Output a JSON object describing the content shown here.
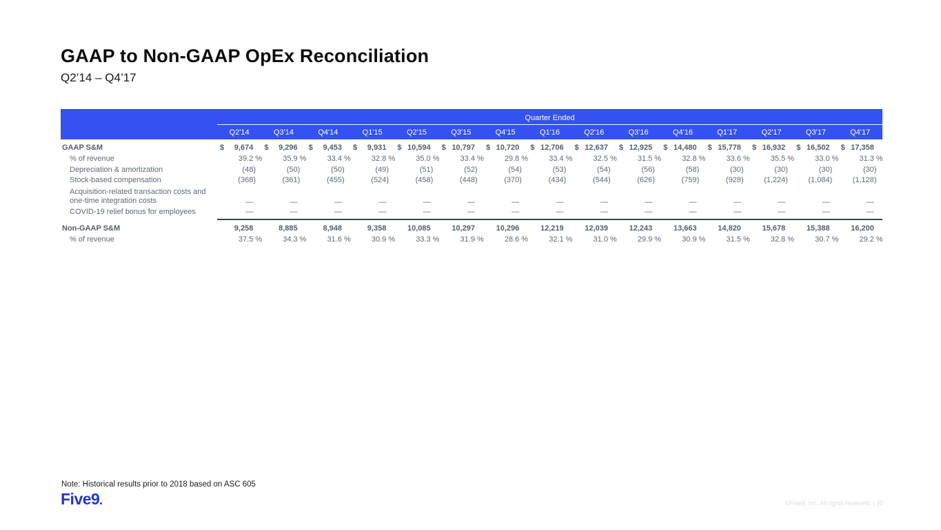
{
  "slide": {
    "title": "GAAP to Non-GAAP OpEx Reconciliation",
    "subtitle": "Q2’14 – Q4’17",
    "note": "Note: Historical results prior to 2018 based on ASC 605",
    "logo_text": "Five9",
    "footer": "©Five9, Inc. All rights reserved. | 30"
  },
  "colors": {
    "header_blue": "#3352F1",
    "logo_blue": "#2535CC",
    "text_gray": "#5D6879",
    "text_gray_dark": "#525D6F",
    "rule_dark": "#3A4150",
    "title_black": "#0B0B0C",
    "footer_gray": "#DCDCDC"
  },
  "table": {
    "group_header": "Quarter Ended",
    "columns": [
      "Q2'14",
      "Q3'14",
      "Q4'14",
      "Q1'15",
      "Q2'15",
      "Q3'15",
      "Q4'15",
      "Q1'16",
      "Q2'16",
      "Q3'16",
      "Q4'16",
      "Q1'17",
      "Q2'17",
      "Q3'17",
      "Q4'17"
    ],
    "rows": [
      {
        "label": "GAAP S&M",
        "style": "total",
        "dollar": true,
        "values": [
          "9,674",
          "9,296",
          "9,453",
          "9,931",
          "10,594",
          "10,797",
          "10,720",
          "12,706",
          "12,637",
          "12,925",
          "14,480",
          "15,778",
          "16,932",
          "16,502",
          "17,358"
        ]
      },
      {
        "label": "% of revenue",
        "style": "sub",
        "values": [
          "39.2 %",
          "35.9 %",
          "33.4 %",
          "32.8 %",
          "35.0 %",
          "33.4 %",
          "29.8 %",
          "33.4 %",
          "32.5 %",
          "31.5 %",
          "32.8 %",
          "33.6 %",
          "35.5 %",
          "33.0 %",
          "31.3 %"
        ]
      },
      {
        "label": "Depreciation & amortization",
        "style": "sub",
        "values": [
          "(48)",
          "(50)",
          "(50)",
          "(49)",
          "(51)",
          "(52)",
          "(54)",
          "(53)",
          "(54)",
          "(56)",
          "(58)",
          "(30)",
          "(30)",
          "(30)",
          "(30)"
        ]
      },
      {
        "label": "Stock-based compensation",
        "style": "sub",
        "values": [
          "(368)",
          "(361)",
          "(455)",
          "(524)",
          "(458)",
          "(448)",
          "(370)",
          "(434)",
          "(544)",
          "(626)",
          "(759)",
          "(928)",
          "(1,224)",
          "(1,084)",
          "(1,128)"
        ]
      },
      {
        "label": "Acquisition-related transaction costs and\none-time integration costs",
        "style": "sub",
        "two_line": true,
        "values": [
          "—",
          "—",
          "—",
          "—",
          "—",
          "—",
          "—",
          "—",
          "—",
          "—",
          "—",
          "—",
          "—",
          "—",
          "—"
        ]
      },
      {
        "label": "COVID-19 relief bonus for employees",
        "style": "sub",
        "rule_below": true,
        "values": [
          "—",
          "—",
          "—",
          "—",
          "—",
          "—",
          "—",
          "—",
          "—",
          "—",
          "—",
          "—",
          "—",
          "—",
          "—"
        ]
      },
      {
        "label": "Non-GAAP S&M",
        "style": "total",
        "values": [
          "9,258",
          "8,885",
          "8,948",
          "9,358",
          "10,085",
          "10,297",
          "10,296",
          "12,219",
          "12,039",
          "12,243",
          "13,663",
          "14,820",
          "15,678",
          "15,388",
          "16,200"
        ]
      },
      {
        "label": "% of revenue",
        "style": "sub",
        "values": [
          "37.5 %",
          "34.3 %",
          "31.6 %",
          "30.9 %",
          "33.3 %",
          "31.9 %",
          "28.6 %",
          "32.1 %",
          "31.0 %",
          "29.9 %",
          "30.9 %",
          "31.5 %",
          "32.8 %",
          "30.7 %",
          "29.2 %"
        ]
      }
    ]
  }
}
